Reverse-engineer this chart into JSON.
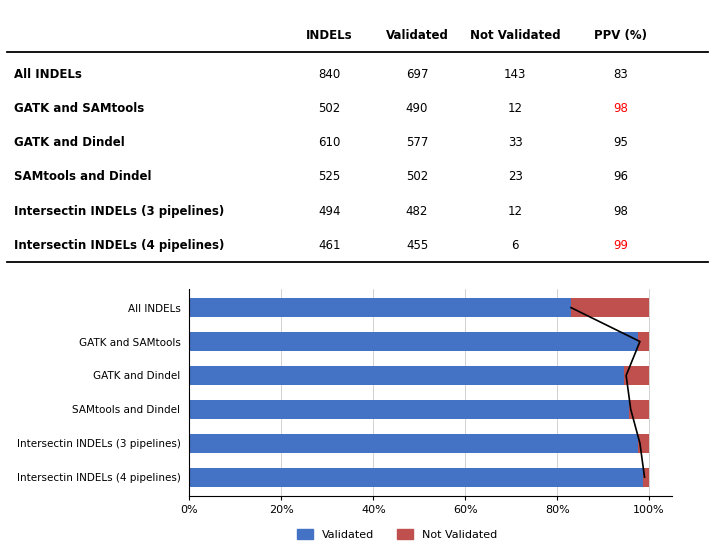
{
  "table": {
    "headers": [
      "",
      "INDELs",
      "Validated",
      "Not Validated",
      "PPV (%)"
    ],
    "rows": [
      {
        "label": "All INDELs",
        "indels": 840,
        "validated": 697,
        "not_validated": 143,
        "ppv": 83,
        "ppv_red": false
      },
      {
        "label": "GATK and SAMtools",
        "indels": 502,
        "validated": 490,
        "not_validated": 12,
        "ppv": 98,
        "ppv_red": true
      },
      {
        "label": "GATK and Dindel",
        "indels": 610,
        "validated": 577,
        "not_validated": 33,
        "ppv": 95,
        "ppv_red": false
      },
      {
        "label": "SAMtools and Dindel",
        "indels": 525,
        "validated": 502,
        "not_validated": 23,
        "ppv": 96,
        "ppv_red": false
      },
      {
        "label": "Intersectin INDELs (3 pipelines)",
        "indels": 494,
        "validated": 482,
        "not_validated": 12,
        "ppv": 98,
        "ppv_red": false
      },
      {
        "label": "Intersectin INDELs (4 pipelines)",
        "indels": 461,
        "validated": 455,
        "not_validated": 6,
        "ppv": 99,
        "ppv_red": true
      }
    ]
  },
  "chart": {
    "categories": [
      "All INDELs",
      "GATK and SAMtools",
      "GATK and Dindel",
      "SAMtools and Dindel",
      "Intersectin INDELs (3 pipelines)",
      "Intersectin INDELs (4 pipelines)"
    ],
    "validated_pct": [
      82.98,
      97.61,
      94.59,
      95.62,
      97.57,
      98.7
    ],
    "not_validated_pct": [
      17.02,
      2.39,
      5.41,
      4.38,
      2.43,
      1.3
    ],
    "bar_color_validated": "#4472C4",
    "bar_color_not_validated": "#C0504D",
    "ppv_values": [
      83,
      98,
      95,
      96,
      98,
      99
    ]
  },
  "colors": {
    "text_black": "#000000",
    "text_red": "#FF0000"
  }
}
